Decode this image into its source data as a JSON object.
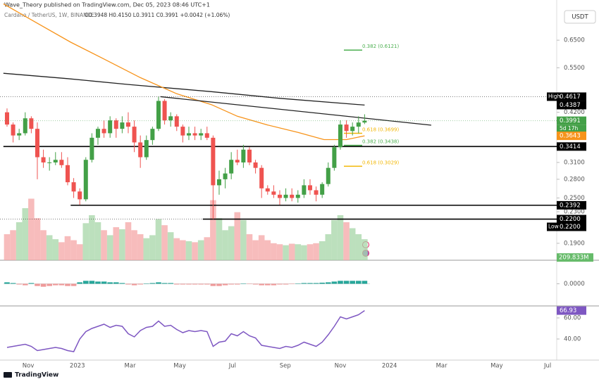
{
  "header": {
    "publisher": "Wave_Theory published on TradingView.com, Dec 05, 2023 08:46 UTC+1",
    "symbol": "Cardano / TetherUS, 1W, BINANCE",
    "ohlc": "O0.3948 H0.4150 L0.3911 C0.3991 +0.0042 (+1.06%)",
    "currency": "USDT"
  },
  "footer": "TradingView",
  "chart_data": {
    "type": "candlestick",
    "log_scale": true,
    "xlim": [
      -1.16,
      90.7
    ],
    "xticks": [
      {
        "value": 3.5,
        "label": "Nov"
      },
      {
        "value": 11.6,
        "label": "2023"
      },
      {
        "value": 20.3,
        "label": "Mar"
      },
      {
        "value": 28.5,
        "label": "May"
      },
      {
        "value": 37.2,
        "label": "Jul"
      },
      {
        "value": 45.9,
        "label": "Sep"
      },
      {
        "value": 55,
        "label": "Nov"
      },
      {
        "value": 63.1,
        "label": "2024"
      },
      {
        "value": 71.7,
        "label": "Mar"
      },
      {
        "value": 80.8,
        "label": "May"
      },
      {
        "value": 89.2,
        "label": "Jul"
      }
    ],
    "ylim": [
      0.1715,
      0.829
    ],
    "yticks": [
      {
        "value": 0.65,
        "label": "0.6500"
      },
      {
        "value": 0.55,
        "label": "0.5500"
      },
      {
        "value": 0.42,
        "label": "0.4200"
      },
      {
        "value": 0.31,
        "label": "0.3100"
      },
      {
        "value": 0.28,
        "label": "0.2800"
      },
      {
        "value": 0.25,
        "label": "0.2500"
      },
      {
        "value": 0.23,
        "label": "0.2300"
      },
      {
        "value": 0.19,
        "label": "0.1900"
      }
    ],
    "up_color": "#43a047",
    "down_color": "#ef5350",
    "open": [
      0.42,
      0.39,
      0.365,
      0.37,
      0.405,
      0.38,
      0.32,
      0.31,
      0.31,
      0.315,
      0.305,
      0.275,
      0.26,
      0.248,
      0.315,
      0.36,
      0.38,
      0.37,
      0.4,
      0.38,
      0.395,
      0.385,
      0.35,
      0.32,
      0.355,
      0.38,
      0.45,
      0.4,
      0.41,
      0.385,
      0.365,
      0.37,
      0.365,
      0.37,
      0.36,
      0.27,
      0.28,
      0.29,
      0.315,
      0.31,
      0.335,
      0.31,
      0.3,
      0.265,
      0.26,
      0.255,
      0.25,
      0.255,
      0.25,
      0.255,
      0.27,
      0.262,
      0.255,
      0.272,
      0.3,
      0.34,
      0.39,
      0.375,
      0.385,
      0.3948
    ],
    "high": [
      0.43,
      0.395,
      0.38,
      0.42,
      0.41,
      0.395,
      0.335,
      0.32,
      0.33,
      0.33,
      0.32,
      0.282,
      0.265,
      0.32,
      0.37,
      0.385,
      0.4,
      0.41,
      0.405,
      0.41,
      0.42,
      0.4,
      0.365,
      0.365,
      0.385,
      0.4617,
      0.455,
      0.42,
      0.415,
      0.39,
      0.385,
      0.385,
      0.38,
      0.385,
      0.365,
      0.295,
      0.3,
      0.33,
      0.335,
      0.345,
      0.34,
      0.315,
      0.305,
      0.27,
      0.27,
      0.262,
      0.265,
      0.265,
      0.262,
      0.28,
      0.28,
      0.268,
      0.275,
      0.31,
      0.345,
      0.4,
      0.4,
      0.395,
      0.41,
      0.415
    ],
    "low": [
      0.385,
      0.35,
      0.355,
      0.365,
      0.37,
      0.28,
      0.3,
      0.295,
      0.305,
      0.3,
      0.27,
      0.25,
      0.24,
      0.245,
      0.31,
      0.345,
      0.36,
      0.36,
      0.36,
      0.37,
      0.37,
      0.33,
      0.3,
      0.315,
      0.345,
      0.375,
      0.39,
      0.385,
      0.375,
      0.35,
      0.355,
      0.355,
      0.355,
      0.355,
      0.22,
      0.255,
      0.265,
      0.28,
      0.305,
      0.3,
      0.305,
      0.29,
      0.25,
      0.255,
      0.25,
      0.24,
      0.245,
      0.245,
      0.243,
      0.25,
      0.255,
      0.245,
      0.25,
      0.268,
      0.295,
      0.335,
      0.36,
      0.365,
      0.37,
      0.3911
    ],
    "close": [
      0.39,
      0.365,
      0.37,
      0.405,
      0.38,
      0.32,
      0.31,
      0.31,
      0.315,
      0.305,
      0.275,
      0.26,
      0.248,
      0.315,
      0.36,
      0.38,
      0.37,
      0.4,
      0.38,
      0.395,
      0.385,
      0.35,
      0.32,
      0.355,
      0.38,
      0.45,
      0.4,
      0.41,
      0.385,
      0.365,
      0.37,
      0.365,
      0.37,
      0.36,
      0.27,
      0.28,
      0.29,
      0.315,
      0.31,
      0.335,
      0.31,
      0.3,
      0.265,
      0.26,
      0.255,
      0.25,
      0.255,
      0.25,
      0.255,
      0.27,
      0.262,
      0.255,
      0.272,
      0.3,
      0.34,
      0.39,
      0.375,
      0.385,
      0.3948,
      0.3991
    ],
    "mas": [
      {
        "color": "#222222",
        "x": [
          -0.6,
          10,
          20,
          33.7,
          45,
          59
        ],
        "values": [
          0.532,
          0.515,
          0.497,
          0.476,
          0.457,
          0.4387
        ]
      },
      {
        "color": "#f7931a",
        "x": [
          -0.6,
          5,
          10.5,
          16,
          22,
          28,
          33.7,
          38,
          43,
          48,
          52.3,
          56,
          59
        ],
        "values": [
          0.81,
          0.72,
          0.642,
          0.58,
          0.518,
          0.47,
          0.44,
          0.41,
          0.389,
          0.372,
          0.356,
          0.356,
          0.3643
        ]
      }
    ],
    "trendline": {
      "x": [
        25.3,
        70
      ],
      "values": [
        0.4617,
        0.3885
      ]
    },
    "levels": [
      {
        "value": 0.3414,
        "from": -0.6
      },
      {
        "value": 0.2392,
        "from": 10.5
      },
      {
        "value": 0.22,
        "from": 32.3
      }
    ],
    "fib_labels": [
      {
        "text": "0.382 (0.6121)",
        "value": 0.6121,
        "color": "#4caf50"
      },
      {
        "text": "0.618 (0.3699)",
        "value": 0.3699,
        "color": "#f2b705"
      },
      {
        "text": "0.382 (0.3438)",
        "value": 0.3438,
        "color": "#4caf50"
      },
      {
        "text": "0.618 (0.3029)",
        "value": 0.3029,
        "color": "#f2b705"
      }
    ],
    "price_markers": [
      {
        "value": 0.4617,
        "label": "0.4617",
        "tag": "High",
        "color": "#000000",
        "dotted": true
      },
      {
        "value": 0.4387,
        "label": "0.4387",
        "color": "#000000"
      },
      {
        "value": 0.3991,
        "label": "0.3991",
        "sub": "5d 17h",
        "color": "#43a047",
        "dotted": true
      },
      {
        "value": 0.3643,
        "label": "0.3643",
        "color": "#f7931a"
      },
      {
        "value": 0.3414,
        "label": "0.3414",
        "color": "#000000"
      },
      {
        "value": 0.2392,
        "label": "0.2392",
        "color": "#000000"
      },
      {
        "value": 0.22,
        "label": "0.2200",
        "color": "#000000",
        "dotted": true
      },
      {
        "value": 0.22,
        "label": "0.2200",
        "tag": "Low",
        "color": "#000000"
      }
    ],
    "volume": {
      "ylim": [
        0,
        2600
      ],
      "last_label": "209.833M",
      "values": [
        260,
        300,
        380,
        520,
        615,
        420,
        300,
        250,
        210,
        180,
        240,
        200,
        160,
        370,
        450,
        380,
        300,
        250,
        330,
        310,
        380,
        300,
        260,
        220,
        250,
        410,
        350,
        280,
        220,
        200,
        190,
        180,
        200,
        230,
        600,
        420,
        300,
        340,
        480,
        400,
        260,
        200,
        250,
        200,
        170,
        160,
        150,
        165,
        160,
        150,
        160,
        170,
        190,
        260,
        400,
        450,
        380,
        320,
        260,
        209.833
      ]
    },
    "macd": {
      "ylim": [
        -0.03,
        0.03
      ],
      "yticks": [
        {
          "value": 0,
          "label": "0.0000"
        }
      ],
      "histogram": [
        0.002,
        0.001,
        -0.001,
        -0.002,
        0.001,
        -0.003,
        -0.004,
        -0.003,
        -0.002,
        -0.002,
        -0.003,
        -0.003,
        0.002,
        0.004,
        0.004,
        0.003,
        0.003,
        0.002,
        0.002,
        0.001,
        -0.001,
        -0.002,
        -0.001,
        0.0005,
        0.001,
        0.002,
        0.001,
        0.001,
        -0.001,
        -0.001,
        -0.001,
        -0.001,
        -0.001,
        -0.001,
        -0.003,
        -0.003,
        -0.002,
        -0.001,
        -0.001,
        0.0005,
        -0.0005,
        -0.001,
        -0.002,
        -0.002,
        -0.002,
        -0.001,
        -0.001,
        -0.0005,
        0.0005,
        0.001,
        0.001,
        0.001,
        0.0015,
        0.002,
        0.003,
        0.004,
        0.004,
        0.004,
        0.004,
        0.004
      ]
    },
    "rsi": {
      "ylim": [
        20,
        70
      ],
      "color": "#7e57c2",
      "yticks": [
        {
          "value": 60,
          "label": "60.00"
        },
        {
          "value": 40,
          "label": "40.00"
        }
      ],
      "values": [
        32,
        33,
        34,
        35,
        33,
        29,
        30,
        31,
        32,
        31,
        29,
        28,
        40,
        47,
        50,
        52,
        54,
        51,
        53,
        52,
        45,
        42,
        48,
        51,
        52,
        57,
        52,
        53,
        49,
        46,
        48,
        47,
        48,
        47,
        33,
        37,
        38,
        45,
        43,
        47,
        43,
        41,
        34,
        33,
        32,
        31,
        33,
        32,
        34,
        37,
        35,
        33,
        37,
        44,
        52,
        61,
        59,
        61,
        63,
        66.93
      ]
    }
  }
}
